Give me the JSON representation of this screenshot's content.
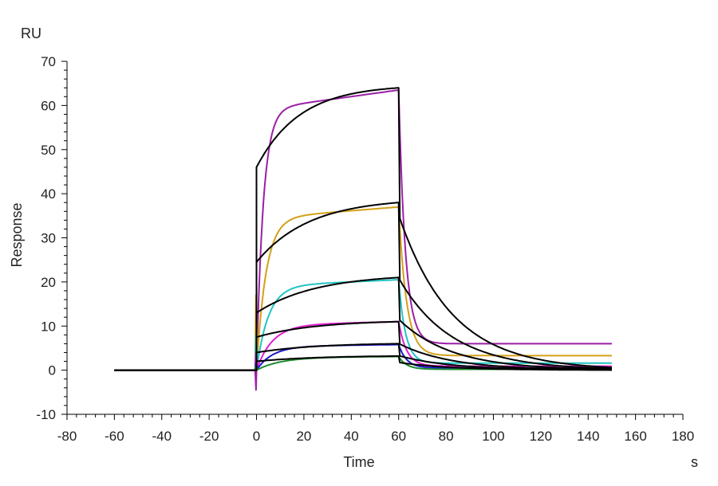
{
  "chart_data": {
    "type": "line",
    "xlabel": "Time",
    "ylabel": "Response",
    "x_unit": "s",
    "y_unit": "RU",
    "xlim": [
      -80,
      180
    ],
    "ylim": [
      -10,
      70
    ],
    "x_ticks": [
      -80,
      -60,
      -40,
      -20,
      0,
      20,
      40,
      60,
      80,
      100,
      120,
      140,
      160,
      180
    ],
    "y_ticks": [
      -10,
      0,
      10,
      20,
      30,
      40,
      50,
      60,
      70
    ],
    "grid": false,
    "legend": "none",
    "colors": {
      "axis": "#000000",
      "fit": "#000000",
      "c1": "#9b1fa6",
      "c2": "#d4a017",
      "c3": "#22c4c4",
      "c4": "#e020d0",
      "c5": "#1a1acc",
      "c6": "#1f8a2e"
    },
    "series": [
      {
        "color_key": "c1",
        "req": 63.5,
        "kon": 0.35,
        "koff_fast": 0.35,
        "residual": 6.0,
        "dip": -4.5
      },
      {
        "color_key": "c2",
        "req": 37.0,
        "kon": 0.25,
        "koff_fast": 0.3,
        "residual": 3.3,
        "dip": 17
      },
      {
        "color_key": "c3",
        "req": 20.5,
        "kon": 0.2,
        "koff_fast": 0.35,
        "residual": 1.6,
        "dip": 8
      },
      {
        "color_key": "c4",
        "req": 11.0,
        "kon": 0.15,
        "koff_fast": 0.3,
        "residual": 0.9,
        "dip": 4
      },
      {
        "color_key": "c5",
        "req": 5.8,
        "kon": 0.15,
        "koff_fast": 0.3,
        "residual": 0.5,
        "dip": 1.5
      },
      {
        "color_key": "c6",
        "req": 3.1,
        "kon": 0.1,
        "koff_fast": 0.3,
        "residual": 0.2,
        "dip": 1.0
      }
    ],
    "fits": [
      {
        "rmax": 64,
        "k": 0.055,
        "offset": 46,
        "end": 0.0
      },
      {
        "rmax": 38,
        "k": 0.045,
        "offset": 24.5,
        "end": 0.0
      },
      {
        "rmax": 21,
        "k": 0.04,
        "offset": 13,
        "end": 0.0
      },
      {
        "rmax": 11,
        "k": 0.04,
        "offset": 7.5,
        "end": 0.0
      },
      {
        "rmax": 6,
        "k": 0.04,
        "offset": 4.0,
        "end": 0.0
      },
      {
        "rmax": 3.2,
        "k": 0.04,
        "offset": 2.0,
        "end": 0.0
      }
    ],
    "phases": {
      "baseline_start": -60,
      "injection_start": 0,
      "injection_end": 60,
      "end": 150
    }
  }
}
